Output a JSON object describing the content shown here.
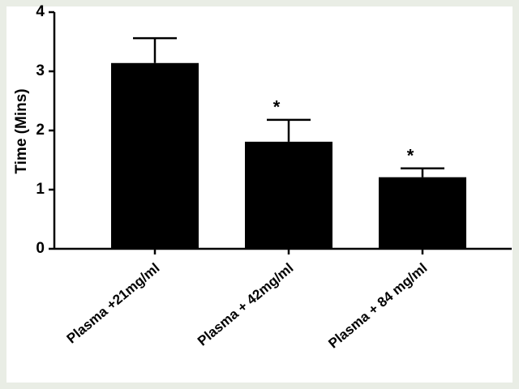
{
  "chart_data": {
    "type": "bar",
    "y_label": "Time (Mins)",
    "categories": [
      "Plasma +21mg/ml",
      "Plasma + 42mg/ml",
      "Plasma + 84 mg/ml"
    ],
    "values": [
      3.14,
      1.81,
      1.21
    ],
    "errors": [
      0.42,
      0.37,
      0.15
    ],
    "annotations": [
      null,
      "*",
      "*"
    ],
    "color": "#000000",
    "ylim": [
      0,
      4
    ],
    "yticks": [
      0,
      1,
      2,
      3,
      4
    ],
    "grid": false
  }
}
